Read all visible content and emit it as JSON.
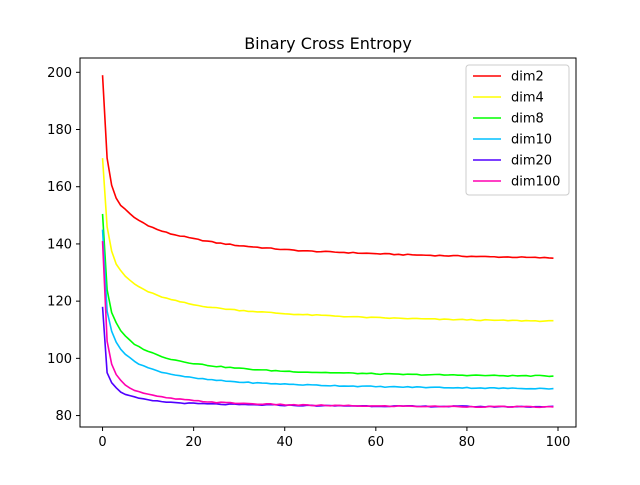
{
  "chart_data": {
    "type": "line",
    "title": "Binary Cross Entropy",
    "xlabel": "",
    "ylabel": "",
    "xlim": [
      -4.95,
      103.95
    ],
    "ylim": [
      76.0,
      205.0
    ],
    "xticks": [
      0,
      20,
      40,
      60,
      80,
      100
    ],
    "yticks": [
      80,
      100,
      120,
      140,
      160,
      180,
      200
    ],
    "xtick_labels": [
      "0",
      "20",
      "40",
      "60",
      "80",
      "100"
    ],
    "ytick_labels": [
      "80",
      "100",
      "120",
      "140",
      "160",
      "180",
      "200"
    ],
    "grid": false,
    "legend_position": "top-right",
    "x_range": [
      0,
      99
    ],
    "series": [
      {
        "name": "dim2",
        "color": "#ff0000",
        "points": [
          [
            0,
            199
          ],
          [
            1,
            170
          ],
          [
            2,
            160.5
          ],
          [
            3,
            156
          ],
          [
            4,
            153.5
          ],
          [
            5,
            152
          ],
          [
            6,
            150.5
          ],
          [
            7,
            149.2
          ],
          [
            8,
            148.2
          ],
          [
            10,
            146.5
          ],
          [
            12,
            145
          ],
          [
            15,
            143.5
          ],
          [
            20,
            141.8
          ],
          [
            25,
            140.4
          ],
          [
            30,
            139.4
          ],
          [
            35,
            138.7
          ],
          [
            40,
            138
          ],
          [
            45,
            137.5
          ],
          [
            50,
            137.2
          ],
          [
            55,
            136.9
          ],
          [
            60,
            136.6
          ],
          [
            65,
            136.3
          ],
          [
            70,
            136.1
          ],
          [
            75,
            135.9
          ],
          [
            80,
            135.7
          ],
          [
            85,
            135.5
          ],
          [
            90,
            135.4
          ],
          [
            95,
            135.2
          ],
          [
            99,
            135.1
          ]
        ]
      },
      {
        "name": "dim4",
        "color": "#ffff00",
        "points": [
          [
            0,
            170
          ],
          [
            1,
            146
          ],
          [
            2,
            137.5
          ],
          [
            3,
            133
          ],
          [
            4,
            130.5
          ],
          [
            5,
            128.7
          ],
          [
            6,
            127.3
          ],
          [
            7,
            126
          ],
          [
            8,
            125
          ],
          [
            10,
            123.3
          ],
          [
            12,
            122
          ],
          [
            15,
            120.5
          ],
          [
            20,
            118.7
          ],
          [
            25,
            117.6
          ],
          [
            30,
            116.8
          ],
          [
            35,
            116.2
          ],
          [
            40,
            115.6
          ],
          [
            45,
            115.2
          ],
          [
            50,
            114.9
          ],
          [
            55,
            114.5
          ],
          [
            60,
            114.2
          ],
          [
            65,
            114
          ],
          [
            70,
            113.8
          ],
          [
            75,
            113.6
          ],
          [
            80,
            113.5
          ],
          [
            85,
            113.3
          ],
          [
            90,
            113.2
          ],
          [
            95,
            113.1
          ],
          [
            99,
            113
          ]
        ]
      },
      {
        "name": "dim8",
        "color": "#00ff00",
        "points": [
          [
            0,
            150.5
          ],
          [
            1,
            124
          ],
          [
            2,
            116
          ],
          [
            3,
            112.3
          ],
          [
            4,
            109.6
          ],
          [
            5,
            107.7
          ],
          [
            6,
            106.3
          ],
          [
            7,
            105
          ],
          [
            8,
            104
          ],
          [
            10,
            102.5
          ],
          [
            12,
            101.2
          ],
          [
            15,
            99.7
          ],
          [
            20,
            98.2
          ],
          [
            25,
            97.2
          ],
          [
            30,
            96.5
          ],
          [
            35,
            95.9
          ],
          [
            40,
            95.5
          ],
          [
            45,
            95.2
          ],
          [
            50,
            95
          ],
          [
            55,
            94.8
          ],
          [
            60,
            94.6
          ],
          [
            65,
            94.4
          ],
          [
            70,
            94.3
          ],
          [
            75,
            94.2
          ],
          [
            80,
            94.1
          ],
          [
            85,
            94
          ],
          [
            90,
            93.9
          ],
          [
            95,
            93.9
          ],
          [
            99,
            93.8
          ]
        ]
      },
      {
        "name": "dim10",
        "color": "#00c0ff",
        "points": [
          [
            0,
            145
          ],
          [
            1,
            116.5
          ],
          [
            2,
            109.5
          ],
          [
            3,
            105.8
          ],
          [
            4,
            103.3
          ],
          [
            5,
            101.5
          ],
          [
            6,
            100.1
          ],
          [
            7,
            99
          ],
          [
            8,
            98.1
          ],
          [
            10,
            96.7
          ],
          [
            12,
            95.6
          ],
          [
            15,
            94.5
          ],
          [
            20,
            93.1
          ],
          [
            25,
            92.3
          ],
          [
            30,
            91.7
          ],
          [
            35,
            91.3
          ],
          [
            40,
            91
          ],
          [
            45,
            90.7
          ],
          [
            50,
            90.5
          ],
          [
            55,
            90.3
          ],
          [
            60,
            90.1
          ],
          [
            65,
            90
          ],
          [
            70,
            89.9
          ],
          [
            75,
            89.8
          ],
          [
            80,
            89.7
          ],
          [
            85,
            89.6
          ],
          [
            90,
            89.5
          ],
          [
            95,
            89.5
          ],
          [
            99,
            89.4
          ]
        ]
      },
      {
        "name": "dim20",
        "color": "#5000ff",
        "points": [
          [
            0,
            118
          ],
          [
            1,
            95
          ],
          [
            2,
            91.5
          ],
          [
            3,
            89.6
          ],
          [
            4,
            88.3
          ],
          [
            5,
            87.5
          ],
          [
            6,
            86.9
          ],
          [
            7,
            86.4
          ],
          [
            8,
            86
          ],
          [
            10,
            85.4
          ],
          [
            12,
            85
          ],
          [
            15,
            84.6
          ],
          [
            20,
            84.2
          ],
          [
            25,
            84
          ],
          [
            30,
            83.8
          ],
          [
            35,
            83.7
          ],
          [
            40,
            83.6
          ],
          [
            45,
            83.5
          ],
          [
            50,
            83.4
          ],
          [
            55,
            83.4
          ],
          [
            60,
            83.3
          ],
          [
            65,
            83.3
          ],
          [
            70,
            83.2
          ],
          [
            75,
            83.2
          ],
          [
            80,
            83.2
          ],
          [
            85,
            83.1
          ],
          [
            90,
            83.1
          ],
          [
            95,
            83.1
          ],
          [
            99,
            83.1
          ]
        ]
      },
      {
        "name": "dim100",
        "color": "#ff00b0",
        "points": [
          [
            0,
            141
          ],
          [
            1,
            106
          ],
          [
            2,
            98
          ],
          [
            3,
            94.5
          ],
          [
            4,
            92.2
          ],
          [
            5,
            90.8
          ],
          [
            6,
            89.7
          ],
          [
            7,
            88.9
          ],
          [
            8,
            88.3
          ],
          [
            10,
            87.4
          ],
          [
            12,
            86.7
          ],
          [
            15,
            86
          ],
          [
            20,
            85.2
          ],
          [
            25,
            84.6
          ],
          [
            30,
            84.3
          ],
          [
            35,
            84
          ],
          [
            40,
            83.8
          ],
          [
            45,
            83.6
          ],
          [
            50,
            83.5
          ],
          [
            55,
            83.4
          ],
          [
            60,
            83.3
          ],
          [
            65,
            83.3
          ],
          [
            70,
            83.2
          ],
          [
            75,
            83.2
          ],
          [
            80,
            83.1
          ],
          [
            85,
            83.1
          ],
          [
            90,
            83.1
          ],
          [
            95,
            83
          ],
          [
            99,
            83
          ]
        ]
      }
    ]
  }
}
